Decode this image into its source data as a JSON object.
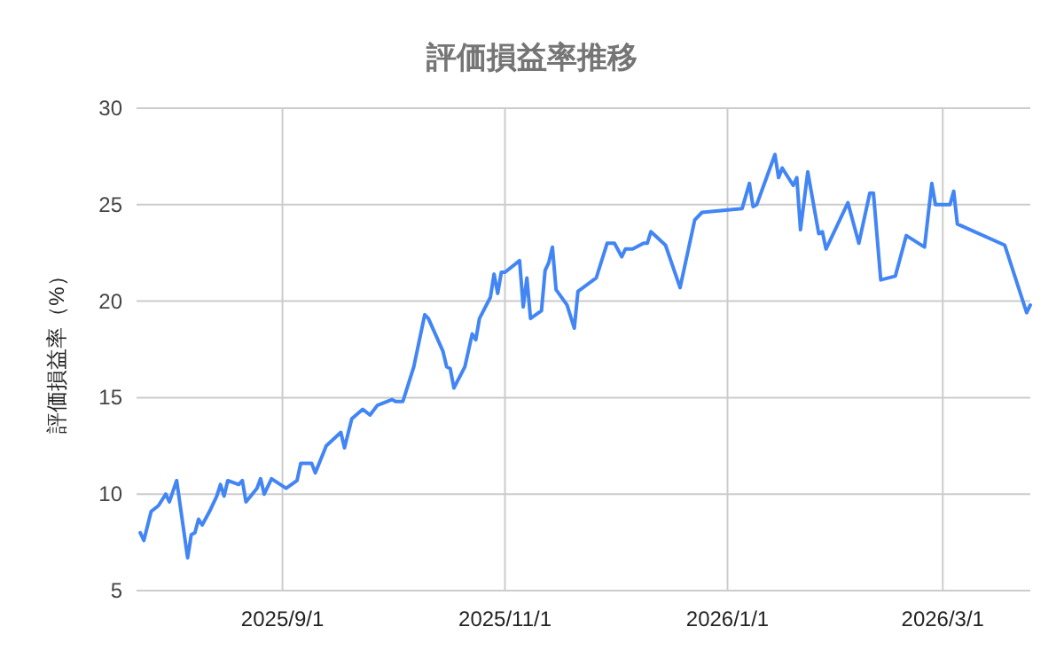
{
  "chart_data": {
    "type": "line",
    "title": "評価損益率推移",
    "ylabel": "評価損益率（%）",
    "x": [
      "2025-07-24",
      "2025-07-25",
      "2025-07-27",
      "2025-07-29",
      "2025-07-31",
      "2025-08-01",
      "2025-08-03",
      "2025-08-06",
      "2025-08-07",
      "2025-08-08",
      "2025-08-09",
      "2025-08-10",
      "2025-08-12",
      "2025-08-14",
      "2025-08-15",
      "2025-08-16",
      "2025-08-17",
      "2025-08-20",
      "2025-08-21",
      "2025-08-22",
      "2025-08-25",
      "2025-08-26",
      "2025-08-27",
      "2025-08-29",
      "2025-09-02",
      "2025-09-05",
      "2025-09-06",
      "2025-09-09",
      "2025-09-10",
      "2025-09-13",
      "2025-09-17",
      "2025-09-18",
      "2025-09-20",
      "2025-09-23",
      "2025-09-25",
      "2025-09-27",
      "2025-10-01",
      "2025-10-02",
      "2025-10-04",
      "2025-10-07",
      "2025-10-10",
      "2025-10-11",
      "2025-10-15",
      "2025-10-16",
      "2025-10-17",
      "2025-10-18",
      "2025-10-21",
      "2025-10-23",
      "2025-10-24",
      "2025-10-25",
      "2025-10-28",
      "2025-10-29",
      "2025-10-30",
      "2025-10-31",
      "2025-11-01",
      "2025-11-05",
      "2025-11-06",
      "2025-11-07",
      "2025-11-08",
      "2025-11-11",
      "2025-11-12",
      "2025-11-13",
      "2025-11-14",
      "2025-11-15",
      "2025-11-18",
      "2025-11-20",
      "2025-11-21",
      "2025-11-26",
      "2025-11-29",
      "2025-12-01",
      "2025-12-03",
      "2025-12-04",
      "2025-12-06",
      "2025-12-09",
      "2025-12-10",
      "2025-12-11",
      "2025-12-15",
      "2025-12-19",
      "2025-12-23",
      "2025-12-25",
      "2026-01-05",
      "2026-01-07",
      "2026-01-08",
      "2026-01-09",
      "2026-01-14",
      "2026-01-15",
      "2026-01-16",
      "2026-01-19",
      "2026-01-20",
      "2026-01-21",
      "2026-01-23",
      "2026-01-26",
      "2026-01-27",
      "2026-01-28",
      "2026-02-03",
      "2026-02-06",
      "2026-02-09",
      "2026-02-10",
      "2026-02-12",
      "2026-02-16",
      "2026-02-19",
      "2026-02-24",
      "2026-02-26",
      "2026-02-27",
      "2026-03-03",
      "2026-03-04",
      "2026-03-05",
      "2026-03-18",
      "2026-03-24",
      "2026-03-25"
    ],
    "series": [
      {
        "color": "#4285f4",
        "values": [
          8.0,
          7.6,
          9.1,
          9.4,
          10.0,
          9.6,
          10.7,
          6.7,
          7.9,
          8.0,
          8.7,
          8.4,
          9.1,
          9.9,
          10.5,
          9.9,
          10.7,
          10.5,
          10.7,
          9.6,
          10.3,
          10.8,
          10.0,
          10.8,
          10.3,
          10.7,
          11.6,
          11.6,
          11.1,
          12.5,
          13.2,
          12.4,
          13.9,
          14.4,
          14.1,
          14.6,
          14.9,
          14.8,
          14.8,
          16.6,
          19.3,
          19.1,
          17.4,
          16.6,
          16.5,
          15.5,
          16.6,
          18.3,
          18.0,
          19.1,
          20.2,
          21.4,
          20.4,
          21.5,
          21.5,
          22.1,
          19.7,
          21.2,
          19.1,
          19.5,
          21.6,
          22.0,
          22.8,
          20.6,
          19.8,
          18.6,
          20.5,
          21.2,
          23.0,
          23.0,
          22.3,
          22.7,
          22.7,
          23.0,
          23.0,
          23.6,
          22.9,
          20.7,
          24.2,
          24.6,
          24.8,
          26.1,
          24.9,
          25.0,
          27.6,
          26.4,
          26.9,
          26.0,
          26.4,
          23.7,
          26.7,
          23.5,
          23.6,
          22.7,
          25.1,
          23.0,
          25.6,
          25.6,
          21.1,
          21.3,
          23.4,
          22.8,
          26.1,
          25.0,
          25.0,
          25.7,
          24.0,
          22.9,
          19.4,
          19.8
        ]
      }
    ],
    "xlim": [
      "2025-07-23",
      "2026-03-25"
    ],
    "xticks": [
      {
        "value": "2025-09-01",
        "label": "2025/9/1"
      },
      {
        "value": "2025-11-01",
        "label": "2025/11/1"
      },
      {
        "value": "2026-01-01",
        "label": "2026/1/1"
      },
      {
        "value": "2026-03-01",
        "label": "2026/3/1"
      }
    ],
    "ylim": [
      5,
      30
    ],
    "yticks": [
      5,
      10,
      15,
      20,
      25,
      30
    ],
    "grid": true,
    "marker": "none",
    "line_style": "solid"
  }
}
